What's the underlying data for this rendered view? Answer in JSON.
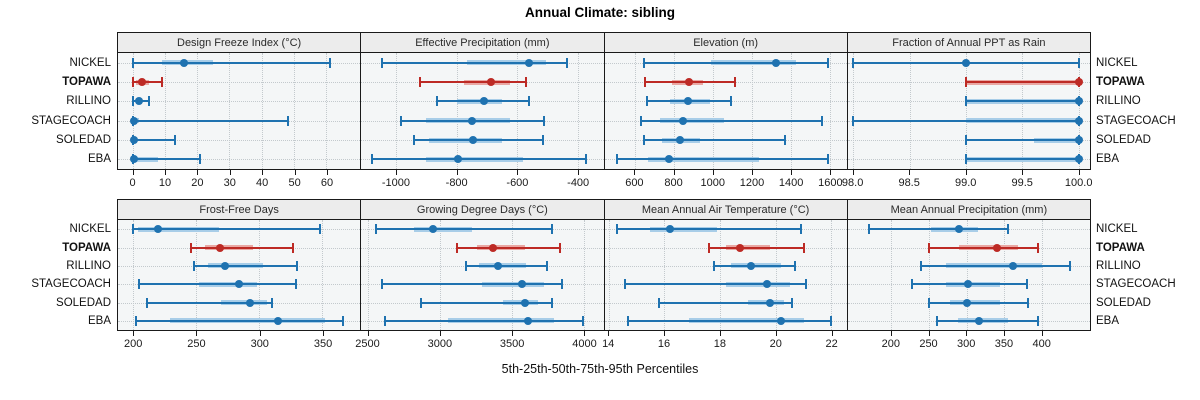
{
  "title": "Annual Climate: sibling",
  "caption": "5th-25th-50th-75th-95th Percentiles",
  "colors": {
    "normal": "#1f72b0",
    "normal_band": "#a8cde8",
    "highlight": "#bd2a25",
    "highlight_band": "#e9a8a4",
    "strip_bg": "#ececec",
    "panel_bg": "#f4f6f7",
    "grid": "#c3c9cd",
    "border": "#1a1a1a"
  },
  "chart_data": {
    "type": "dotplot-percentiles",
    "percentile_levels": [
      5,
      25,
      50,
      75,
      95
    ],
    "rows": [
      "NICKEL",
      "TOPAWA",
      "RILLINO",
      "STAGECOACH",
      "SOLEDAD",
      "EBA"
    ],
    "highlight_row": "TOPAWA",
    "grid": true,
    "row_labels_both_sides": true,
    "panels": [
      {
        "title": "Design Freeze Index (°C)",
        "grid_row": 0,
        "xlim": [
          -4.5,
          70.5
        ],
        "ticks": [
          0,
          10,
          20,
          30,
          40,
          50,
          60
        ],
        "tick_labels": [
          "0",
          "10",
          "20",
          "30",
          "40",
          "50",
          "60"
        ],
        "values": {
          "NICKEL": [
            0,
            9,
            16,
            25,
            61
          ],
          "TOPAWA": [
            0,
            1,
            3,
            5,
            9
          ],
          "RILLINO": [
            0,
            1,
            2,
            3,
            5
          ],
          "STAGECOACH": [
            0,
            0,
            0.5,
            2,
            48
          ],
          "SOLEDAD": [
            0,
            0,
            0.5,
            1,
            13
          ],
          "EBA": [
            0,
            0,
            0.5,
            8,
            21
          ]
        }
      },
      {
        "title": "Effective Precipitation (mm)",
        "grid_row": 0,
        "xlim": [
          -1115,
          -315
        ],
        "ticks": [
          -1000,
          -800,
          -600,
          -400
        ],
        "tick_labels": [
          "-1000",
          "-800",
          "-600",
          "-400"
        ],
        "values": {
          "NICKEL": [
            -1045,
            -765,
            -560,
            -505,
            -435
          ],
          "TOPAWA": [
            -920,
            -775,
            -685,
            -625,
            -570
          ],
          "RILLINO": [
            -865,
            -800,
            -710,
            -650,
            -560
          ],
          "STAGECOACH": [
            -985,
            -900,
            -750,
            -625,
            -510
          ],
          "SOLEDAD": [
            -940,
            -890,
            -745,
            -650,
            -515
          ],
          "EBA": [
            -1080,
            -900,
            -795,
            -580,
            -372
          ]
        }
      },
      {
        "title": "Elevation (m)",
        "grid_row": 0,
        "xlim": [
          445,
          1685
        ],
        "ticks": [
          600,
          800,
          1000,
          1200,
          1400,
          1600
        ],
        "tick_labels": [
          "600",
          "800",
          "1000",
          "1200",
          "1400",
          "1600"
        ],
        "values": {
          "NICKEL": [
            645,
            990,
            1325,
            1425,
            1590
          ],
          "TOPAWA": [
            650,
            790,
            880,
            950,
            1115
          ],
          "RILLINO": [
            660,
            780,
            870,
            985,
            1090
          ],
          "STAGECOACH": [
            630,
            730,
            845,
            1055,
            1560
          ],
          "SOLEDAD": [
            645,
            740,
            830,
            935,
            1370
          ],
          "EBA": [
            510,
            670,
            775,
            1235,
            1590
          ]
        }
      },
      {
        "title": "Fraction of Annual PPT as Rain",
        "grid_row": 0,
        "xlim": [
          97.95,
          100.1
        ],
        "ticks": [
          98.0,
          98.5,
          99.0,
          99.5,
          100.0
        ],
        "tick_labels": [
          "98.0",
          "98.5",
          "99.0",
          "99.5",
          "100.0"
        ],
        "values": {
          "NICKEL": [
            98.0,
            99.0,
            99.0,
            99.0,
            100.0
          ],
          "TOPAWA": [
            99.0,
            99.0,
            100.0,
            100.0,
            100.0
          ],
          "RILLINO": [
            99.0,
            99.0,
            100.0,
            100.0,
            100.0
          ],
          "STAGECOACH": [
            98.0,
            99.0,
            100.0,
            100.0,
            100.0
          ],
          "SOLEDAD": [
            99.0,
            99.6,
            100.0,
            100.0,
            100.0
          ],
          "EBA": [
            99.0,
            99.0,
            100.0,
            100.0,
            100.0
          ]
        }
      },
      {
        "title": "Frost-Free Days",
        "grid_row": 1,
        "xlim": [
          188,
          380
        ],
        "ticks": [
          200,
          250,
          300,
          350
        ],
        "tick_labels": [
          "200",
          "250",
          "300",
          "350"
        ],
        "values": {
          "NICKEL": [
            200,
            204,
            220,
            268,
            348
          ],
          "TOPAWA": [
            246,
            257,
            269,
            295,
            327
          ],
          "RILLINO": [
            248,
            259,
            273,
            303,
            330
          ],
          "STAGECOACH": [
            205,
            252,
            284,
            298,
            329
          ],
          "SOLEDAD": [
            211,
            270,
            293,
            306,
            310
          ],
          "EBA": [
            202,
            229,
            315,
            352,
            366
          ]
        }
      },
      {
        "title": "Growing Degree Days (°C)",
        "grid_row": 1,
        "xlim": [
          2455,
          4135
        ],
        "ticks": [
          2500,
          3000,
          3500,
          4000
        ],
        "tick_labels": [
          "2500",
          "3000",
          "3500",
          "4000"
        ],
        "values": {
          "NICKEL": [
            2560,
            2820,
            2950,
            3220,
            3780
          ],
          "TOPAWA": [
            3120,
            3260,
            3370,
            3590,
            3830
          ],
          "RILLINO": [
            3180,
            3270,
            3400,
            3600,
            3740
          ],
          "STAGECOACH": [
            2600,
            3290,
            3570,
            3720,
            3850
          ],
          "SOLEDAD": [
            2870,
            3440,
            3590,
            3680,
            3780
          ],
          "EBA": [
            2620,
            3060,
            3610,
            3790,
            3990
          ]
        }
      },
      {
        "title": "Mean Annual Air Temperature (°C)",
        "grid_row": 1,
        "xlim": [
          13.85,
          22.55
        ],
        "ticks": [
          14,
          16,
          18,
          20,
          22
        ],
        "tick_labels": [
          "14",
          "16",
          "18",
          "20",
          "22"
        ],
        "values": {
          "NICKEL": [
            14.3,
            15.5,
            16.2,
            17.9,
            20.9
          ],
          "TOPAWA": [
            17.6,
            18.2,
            18.7,
            19.8,
            21.0
          ],
          "RILLINO": [
            17.8,
            18.4,
            19.1,
            20.2,
            20.7
          ],
          "STAGECOACH": [
            14.6,
            18.2,
            19.7,
            20.5,
            21.1
          ],
          "SOLEDAD": [
            15.8,
            19.0,
            19.8,
            20.3,
            20.6
          ],
          "EBA": [
            14.7,
            16.9,
            20.2,
            21.0,
            22.0
          ]
        }
      },
      {
        "title": "Mean Annual Precipitation (mm)",
        "grid_row": 1,
        "xlim": [
          142,
          464
        ],
        "ticks": [
          200,
          250,
          300,
          350,
          400
        ],
        "tick_labels": [
          "200",
          "250",
          "300",
          "350",
          "400"
        ],
        "values": {
          "NICKEL": [
            170,
            252,
            290,
            315,
            355
          ],
          "TOPAWA": [
            250,
            290,
            341,
            368,
            395
          ],
          "RILLINO": [
            240,
            272,
            362,
            400,
            437
          ],
          "STAGECOACH": [
            228,
            272,
            302,
            345,
            380
          ],
          "SOLEDAD": [
            250,
            278,
            300,
            345,
            382
          ],
          "EBA": [
            260,
            288,
            317,
            355,
            395
          ]
        }
      }
    ]
  }
}
